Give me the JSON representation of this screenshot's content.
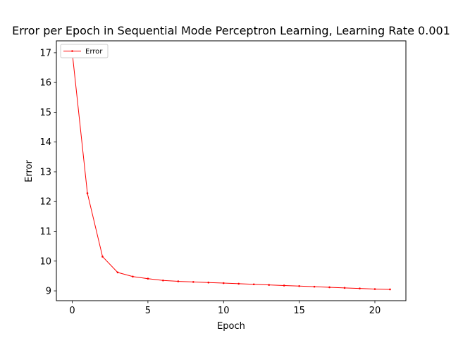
{
  "chart_data": {
    "type": "line",
    "title": "Error per Epoch in Sequential Mode Perceptron Learning, Learning Rate 0.001",
    "xlabel": "Epoch",
    "ylabel": "Error",
    "xlim": [
      -1.05,
      22.05
    ],
    "ylim": [
      8.67,
      17.4
    ],
    "xticks": [
      0,
      5,
      10,
      15,
      20
    ],
    "yticks": [
      9,
      10,
      11,
      12,
      13,
      14,
      15,
      16,
      17
    ],
    "grid": false,
    "legend_position": "top-left",
    "series": [
      {
        "name": "Error",
        "color": "#ff0000",
        "marker": "point",
        "x": [
          0,
          1,
          2,
          3,
          4,
          5,
          6,
          7,
          8,
          9,
          10,
          11,
          12,
          13,
          14,
          15,
          16,
          17,
          18,
          19,
          20,
          21
        ],
        "values": [
          17.0,
          12.28,
          10.15,
          9.62,
          9.48,
          9.41,
          9.35,
          9.32,
          9.3,
          9.28,
          9.26,
          9.24,
          9.22,
          9.2,
          9.18,
          9.16,
          9.14,
          9.12,
          9.1,
          9.08,
          9.06,
          9.05
        ]
      }
    ]
  }
}
